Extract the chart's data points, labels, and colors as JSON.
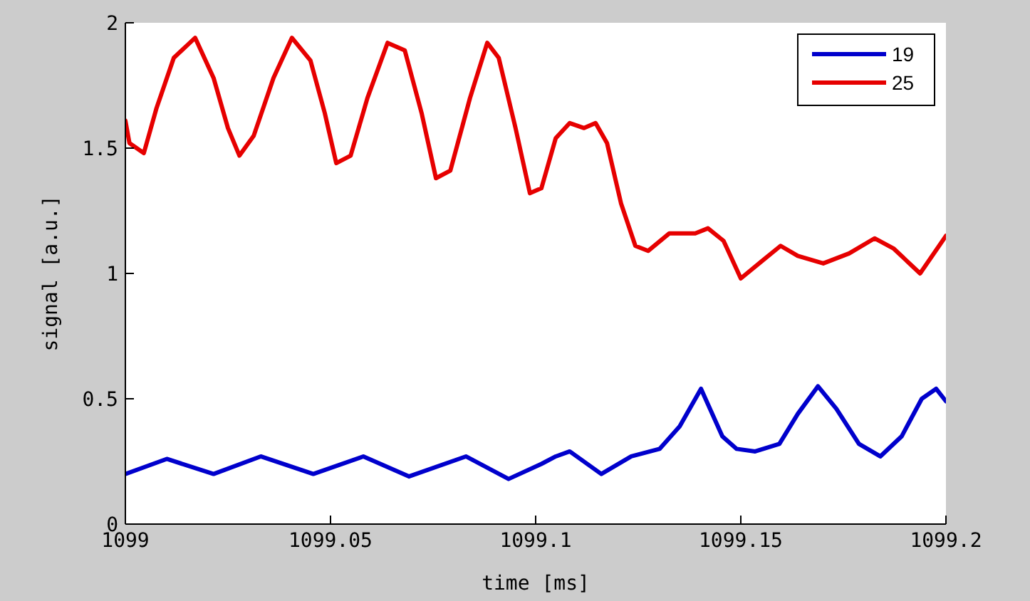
{
  "chart_data": {
    "type": "line",
    "xlabel": "time [ms]",
    "ylabel": "signal [a.u.]",
    "xlim": [
      1099,
      1099.2
    ],
    "xticks": [
      1099,
      1099.05,
      1099.1,
      1099.15,
      1099.2
    ],
    "ylim": [
      0,
      2
    ],
    "yticks": [
      0,
      0.5,
      1,
      1.5,
      2
    ],
    "grid": false,
    "legend": "top right",
    "marker": "none",
    "line_style": "solid",
    "series": [
      {
        "name": "19",
        "color": "#0000cc",
        "x": [
          1099,
          1099.0101,
          1099.0215,
          1099.033,
          1099.0458,
          1099.058,
          1099.0691,
          1099.083,
          1099.0934,
          1099.1014,
          1099.1049,
          1099.1083,
          1099.116,
          1099.1233,
          1099.1302,
          1099.1351,
          1099.1403,
          1099.1455,
          1099.149,
          1099.1535,
          1099.1594,
          1099.1639,
          1099.1688,
          1099.1733,
          1099.1788,
          1099.184,
          1099.1892,
          1099.1941,
          1099.1976,
          1099.2
        ],
        "values": [
          0.2,
          0.26,
          0.2,
          0.27,
          0.2,
          0.27,
          0.19,
          0.27,
          0.18,
          0.24,
          0.27,
          0.29,
          0.2,
          0.27,
          0.3,
          0.39,
          0.54,
          0.35,
          0.3,
          0.29,
          0.32,
          0.44,
          0.55,
          0.46,
          0.32,
          0.27,
          0.35,
          0.5,
          0.54,
          0.49
        ]
      },
      {
        "name": "25",
        "color": "#e60000",
        "x": [
          1099,
          1099.001,
          1099.0045,
          1099.0076,
          1099.0118,
          1099.017,
          1099.0215,
          1099.025,
          1099.0278,
          1099.0313,
          1099.0361,
          1099.0406,
          1099.0451,
          1099.0486,
          1099.0514,
          1099.0549,
          1099.059,
          1099.0639,
          1099.0681,
          1099.0722,
          1099.0757,
          1099.0792,
          1099.084,
          1099.0882,
          1099.091,
          1099.0951,
          1099.0986,
          1099.1014,
          1099.1049,
          1099.1083,
          1099.1118,
          1099.1146,
          1099.1174,
          1099.1208,
          1099.1243,
          1099.1274,
          1099.1326,
          1099.1389,
          1099.142,
          1099.1458,
          1099.15,
          1099.1552,
          1099.1597,
          1099.1639,
          1099.1701,
          1099.1764,
          1099.1826,
          1099.1872,
          1099.1937,
          1099.2
        ],
        "values": [
          1.61,
          1.52,
          1.48,
          1.66,
          1.86,
          1.94,
          1.78,
          1.58,
          1.47,
          1.55,
          1.78,
          1.94,
          1.85,
          1.64,
          1.44,
          1.47,
          1.7,
          1.92,
          1.89,
          1.64,
          1.38,
          1.41,
          1.7,
          1.92,
          1.86,
          1.58,
          1.32,
          1.34,
          1.54,
          1.6,
          1.58,
          1.6,
          1.52,
          1.28,
          1.11,
          1.09,
          1.16,
          1.16,
          1.18,
          1.13,
          0.98,
          1.05,
          1.11,
          1.07,
          1.04,
          1.08,
          1.14,
          1.1,
          1.0,
          1.15
        ]
      }
    ]
  }
}
